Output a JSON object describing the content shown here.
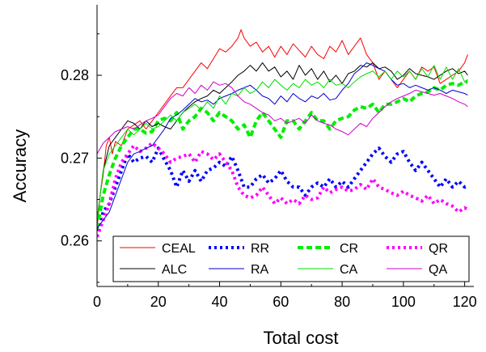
{
  "chart_data": {
    "type": "line",
    "xlabel": "Total cost",
    "ylabel": "Accuracy",
    "xlim": [
      0,
      123
    ],
    "ylim": [
      0.2545,
      0.2885
    ],
    "xticks": [
      0,
      20,
      40,
      60,
      80,
      100,
      120
    ],
    "xtick_labels": [
      "0",
      "20",
      "40",
      "60",
      "80",
      "100",
      "120"
    ],
    "yticks": [
      0.26,
      0.27,
      0.28
    ],
    "ytick_labels": [
      "0.26",
      "0.27",
      "0.28"
    ],
    "grid": false,
    "legend_position": "bottom",
    "series": [
      {
        "name": "CEAL",
        "color": "#ff0000",
        "style": "solid",
        "x": [
          0,
          1,
          2,
          3,
          4,
          5,
          6,
          8,
          10,
          12,
          14,
          16,
          18,
          20,
          22,
          24,
          26,
          28,
          30,
          32,
          34,
          36,
          38,
          40,
          42,
          44,
          46,
          47,
          48,
          50,
          52,
          54,
          56,
          58,
          60,
          62,
          64,
          66,
          68,
          70,
          72,
          74,
          76,
          78,
          80,
          82,
          84,
          86,
          88,
          90,
          92,
          94,
          96,
          98,
          100,
          102,
          104,
          106,
          108,
          110,
          112,
          114,
          116,
          118,
          120,
          121
        ],
        "y": [
          0.2615,
          0.2655,
          0.268,
          0.2715,
          0.2725,
          0.2705,
          0.272,
          0.2715,
          0.2735,
          0.274,
          0.2745,
          0.2735,
          0.2745,
          0.2755,
          0.2765,
          0.2775,
          0.2785,
          0.2785,
          0.2795,
          0.2805,
          0.2815,
          0.2808,
          0.282,
          0.2832,
          0.2828,
          0.2835,
          0.2845,
          0.2855,
          0.2845,
          0.2835,
          0.284,
          0.2828,
          0.2835,
          0.2822,
          0.2835,
          0.2825,
          0.2838,
          0.283,
          0.2822,
          0.2835,
          0.2825,
          0.282,
          0.2835,
          0.2828,
          0.2842,
          0.2825,
          0.2835,
          0.2845,
          0.2825,
          0.2815,
          0.2795,
          0.2805,
          0.2795,
          0.2785,
          0.2795,
          0.2805,
          0.2795,
          0.281,
          0.2805,
          0.281,
          0.279,
          0.2795,
          0.28,
          0.2805,
          0.2815,
          0.2825
        ]
      },
      {
        "name": "RR",
        "color": "#0000ff",
        "style": "dot-thick",
        "x": [
          0,
          2,
          4,
          6,
          8,
          10,
          12,
          14,
          16,
          18,
          20,
          22,
          24,
          26,
          28,
          30,
          32,
          34,
          36,
          38,
          40,
          42,
          44,
          46,
          48,
          50,
          52,
          54,
          56,
          58,
          60,
          62,
          64,
          66,
          68,
          70,
          72,
          74,
          76,
          78,
          80,
          82,
          84,
          86,
          88,
          90,
          92,
          94,
          96,
          98,
          100,
          102,
          104,
          106,
          108,
          110,
          112,
          114,
          116,
          118,
          120,
          121
        ],
        "y": [
          0.2605,
          0.2635,
          0.2645,
          0.2665,
          0.2685,
          0.2705,
          0.2695,
          0.27,
          0.2702,
          0.2695,
          0.2712,
          0.2698,
          0.2685,
          0.2665,
          0.2685,
          0.2672,
          0.2685,
          0.2672,
          0.2685,
          0.2688,
          0.2695,
          0.269,
          0.2702,
          0.2685,
          0.2665,
          0.2665,
          0.2675,
          0.268,
          0.267,
          0.2675,
          0.2685,
          0.2672,
          0.2665,
          0.2665,
          0.2655,
          0.2665,
          0.267,
          0.2665,
          0.2675,
          0.2665,
          0.2672,
          0.2665,
          0.2675,
          0.2685,
          0.2695,
          0.2705,
          0.2712,
          0.2702,
          0.2695,
          0.2705,
          0.2708,
          0.2695,
          0.2685,
          0.2695,
          0.2685,
          0.2675,
          0.2665,
          0.2675,
          0.2665,
          0.2672,
          0.2665,
          0.2668
        ]
      },
      {
        "name": "CR",
        "color": "#00ee00",
        "style": "dash-thick",
        "x": [
          0,
          2,
          4,
          6,
          8,
          10,
          12,
          14,
          16,
          18,
          20,
          22,
          24,
          26,
          28,
          30,
          32,
          34,
          36,
          38,
          40,
          42,
          44,
          46,
          48,
          50,
          52,
          54,
          56,
          58,
          60,
          62,
          64,
          66,
          68,
          70,
          72,
          74,
          76,
          78,
          80,
          82,
          84,
          86,
          88,
          90,
          92,
          94,
          96,
          98,
          100,
          102,
          104,
          106,
          108,
          110,
          112,
          114,
          116,
          118,
          120,
          121
        ],
        "y": [
          0.2615,
          0.2655,
          0.268,
          0.27,
          0.2715,
          0.2725,
          0.2735,
          0.2735,
          0.273,
          0.2732,
          0.2745,
          0.2748,
          0.2745,
          0.2755,
          0.2735,
          0.2745,
          0.275,
          0.276,
          0.2755,
          0.2745,
          0.2755,
          0.275,
          0.2745,
          0.2735,
          0.274,
          0.2725,
          0.2745,
          0.2755,
          0.2745,
          0.2735,
          0.2725,
          0.2745,
          0.2745,
          0.2735,
          0.2745,
          0.2755,
          0.2745,
          0.2745,
          0.2735,
          0.2745,
          0.2748,
          0.275,
          0.2758,
          0.2762,
          0.276,
          0.2765,
          0.2755,
          0.2765,
          0.2765,
          0.2768,
          0.2772,
          0.2768,
          0.2775,
          0.2778,
          0.278,
          0.2785,
          0.2782,
          0.2788,
          0.279,
          0.2788,
          0.2792,
          0.2792
        ]
      },
      {
        "name": "QR",
        "color": "#ff00ff",
        "style": "dot-thick",
        "x": [
          0,
          2,
          4,
          6,
          8,
          10,
          12,
          14,
          16,
          18,
          20,
          22,
          24,
          26,
          28,
          30,
          32,
          34,
          36,
          38,
          40,
          42,
          44,
          46,
          48,
          50,
          52,
          54,
          56,
          58,
          60,
          62,
          64,
          66,
          68,
          70,
          72,
          74,
          76,
          78,
          80,
          82,
          84,
          86,
          88,
          90,
          92,
          94,
          96,
          98,
          100,
          102,
          104,
          106,
          108,
          110,
          112,
          114,
          116,
          118,
          120,
          121
        ],
        "y": [
          0.2605,
          0.2625,
          0.2645,
          0.2675,
          0.2695,
          0.2705,
          0.2715,
          0.2708,
          0.2712,
          0.2718,
          0.2712,
          0.2705,
          0.2695,
          0.27,
          0.2702,
          0.2705,
          0.2695,
          0.2708,
          0.2705,
          0.2698,
          0.2705,
          0.2695,
          0.2685,
          0.2665,
          0.2655,
          0.2652,
          0.2655,
          0.2665,
          0.2655,
          0.2645,
          0.2652,
          0.2645,
          0.265,
          0.2645,
          0.2655,
          0.265,
          0.2652,
          0.2665,
          0.2658,
          0.2662,
          0.2665,
          0.266,
          0.2662,
          0.2668,
          0.2662,
          0.2675,
          0.2665,
          0.2662,
          0.2658,
          0.2655,
          0.266,
          0.2655,
          0.2652,
          0.2648,
          0.2655,
          0.2645,
          0.265,
          0.2645,
          0.2642,
          0.2635,
          0.264,
          0.2638
        ]
      },
      {
        "name": "ALC",
        "color": "#000000",
        "style": "solid",
        "x": [
          0,
          2,
          4,
          6,
          8,
          10,
          12,
          14,
          16,
          18,
          20,
          22,
          24,
          26,
          28,
          30,
          32,
          34,
          36,
          38,
          40,
          42,
          44,
          46,
          48,
          50,
          52,
          54,
          56,
          58,
          60,
          62,
          64,
          66,
          68,
          70,
          72,
          74,
          76,
          78,
          80,
          82,
          84,
          86,
          88,
          90,
          92,
          94,
          96,
          98,
          100,
          102,
          104,
          106,
          108,
          110,
          112,
          114,
          116,
          118,
          120,
          121
        ],
        "y": [
          0.2625,
          0.2685,
          0.2715,
          0.2725,
          0.2735,
          0.2745,
          0.2742,
          0.2735,
          0.2745,
          0.2738,
          0.2742,
          0.2738,
          0.2735,
          0.2745,
          0.2755,
          0.2762,
          0.2768,
          0.2772,
          0.2775,
          0.2782,
          0.2778,
          0.2785,
          0.2792,
          0.28,
          0.2805,
          0.2812,
          0.2805,
          0.2815,
          0.2805,
          0.281,
          0.2798,
          0.2805,
          0.2795,
          0.2812,
          0.28,
          0.2808,
          0.2795,
          0.2805,
          0.2792,
          0.28,
          0.279,
          0.2802,
          0.2805,
          0.2812,
          0.281,
          0.2815,
          0.2808,
          0.281,
          0.2805,
          0.2795,
          0.28,
          0.2808,
          0.2802,
          0.28,
          0.2798,
          0.2795,
          0.28,
          0.2805,
          0.2808,
          0.2802,
          0.2805,
          0.28
        ]
      },
      {
        "name": "RA",
        "color": "#0000cc",
        "style": "solid",
        "x": [
          0,
          2,
          4,
          6,
          8,
          10,
          12,
          14,
          16,
          18,
          20,
          22,
          24,
          26,
          28,
          30,
          32,
          34,
          36,
          38,
          40,
          42,
          44,
          46,
          48,
          50,
          52,
          54,
          56,
          58,
          60,
          62,
          64,
          66,
          68,
          70,
          72,
          74,
          76,
          78,
          80,
          82,
          84,
          86,
          88,
          90,
          92,
          94,
          96,
          98,
          100,
          102,
          104,
          106,
          108,
          110,
          112,
          114,
          116,
          118,
          120,
          121
        ],
        "y": [
          0.2615,
          0.2625,
          0.2635,
          0.2655,
          0.2675,
          0.2695,
          0.2705,
          0.2708,
          0.2712,
          0.2715,
          0.2725,
          0.2735,
          0.2748,
          0.2752,
          0.2758,
          0.2765,
          0.2772,
          0.2768,
          0.277,
          0.2765,
          0.2772,
          0.2775,
          0.2778,
          0.2782,
          0.2785,
          0.2788,
          0.2782,
          0.2775,
          0.2772,
          0.2765,
          0.2775,
          0.2768,
          0.2778,
          0.2772,
          0.2768,
          0.2775,
          0.2772,
          0.2778,
          0.277,
          0.2772,
          0.2782,
          0.279,
          0.2802,
          0.2808,
          0.2815,
          0.2812,
          0.2808,
          0.2805,
          0.2795,
          0.2788,
          0.279,
          0.2785,
          0.2788,
          0.2785,
          0.2782,
          0.2785,
          0.2782,
          0.2778,
          0.2782,
          0.278,
          0.2778,
          0.2776
        ]
      },
      {
        "name": "CA",
        "color": "#00dd00",
        "style": "solid",
        "x": [
          0,
          2,
          4,
          6,
          8,
          10,
          12,
          14,
          16,
          18,
          20,
          22,
          24,
          26,
          28,
          30,
          32,
          34,
          36,
          38,
          40,
          42,
          44,
          46,
          48,
          50,
          52,
          54,
          56,
          58,
          60,
          62,
          64,
          66,
          68,
          70,
          72,
          74,
          76,
          78,
          80,
          82,
          84,
          86,
          88,
          90,
          92,
          94,
          96,
          98,
          100,
          102,
          104,
          106,
          108,
          110,
          112,
          114,
          116,
          118,
          120,
          121
        ],
        "y": [
          0.2625,
          0.2685,
          0.2705,
          0.2715,
          0.2725,
          0.2735,
          0.2728,
          0.2735,
          0.2742,
          0.2735,
          0.2738,
          0.2745,
          0.2752,
          0.2745,
          0.2755,
          0.276,
          0.2765,
          0.2758,
          0.2768,
          0.276,
          0.2775,
          0.2765,
          0.2778,
          0.2775,
          0.2785,
          0.2778,
          0.2782,
          0.2792,
          0.2785,
          0.2795,
          0.2788,
          0.2782,
          0.279,
          0.2785,
          0.2795,
          0.2788,
          0.2792,
          0.2785,
          0.2795,
          0.2788,
          0.279,
          0.2785,
          0.2792,
          0.2798,
          0.2802,
          0.2805,
          0.2798,
          0.2805,
          0.2795,
          0.2805,
          0.2798,
          0.2805,
          0.2795,
          0.2808,
          0.2798,
          0.2812,
          0.2795,
          0.281,
          0.2795,
          0.2808,
          0.2792,
          0.2795
        ]
      },
      {
        "name": "QA",
        "color": "#cc00cc",
        "style": "solid",
        "x": [
          0,
          2,
          4,
          6,
          8,
          10,
          12,
          14,
          16,
          18,
          20,
          22,
          24,
          26,
          28,
          30,
          32,
          34,
          36,
          38,
          40,
          42,
          44,
          46,
          48,
          50,
          52,
          54,
          56,
          58,
          60,
          62,
          64,
          66,
          68,
          70,
          72,
          74,
          76,
          78,
          80,
          82,
          84,
          86,
          88,
          90,
          92,
          94,
          96,
          98,
          100,
          102,
          104,
          106,
          108,
          110,
          112,
          114,
          116,
          118,
          120,
          121
        ],
        "y": [
          0.2705,
          0.2718,
          0.2725,
          0.2732,
          0.2735,
          0.2738,
          0.2735,
          0.274,
          0.2745,
          0.2748,
          0.2752,
          0.2762,
          0.2772,
          0.2778,
          0.2775,
          0.2785,
          0.2778,
          0.2788,
          0.2782,
          0.2792,
          0.2788,
          0.279,
          0.2785,
          0.2775,
          0.2768,
          0.2765,
          0.276,
          0.2755,
          0.2752,
          0.2745,
          0.2748,
          0.2742,
          0.2745,
          0.2748,
          0.2742,
          0.2752,
          0.2745,
          0.2742,
          0.274,
          0.2735,
          0.2732,
          0.2728,
          0.2735,
          0.2742,
          0.2738,
          0.2748,
          0.2755,
          0.2762,
          0.2768,
          0.2772,
          0.2775,
          0.2778,
          0.2782,
          0.278,
          0.2778,
          0.2776,
          0.2778,
          0.2775,
          0.2772,
          0.2768,
          0.2765,
          0.2762
        ]
      }
    ],
    "legend_order": [
      "CEAL",
      "RR",
      "CR",
      "QR",
      "ALC",
      "RA",
      "CA",
      "QA"
    ]
  }
}
